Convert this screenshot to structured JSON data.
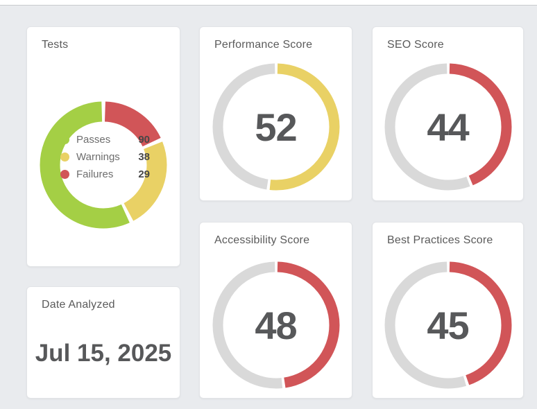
{
  "page": {
    "background_color": "#e9ebee",
    "topbar_color": "#ffffff"
  },
  "colors": {
    "green": "#a4cf45",
    "yellow": "#e9d165",
    "red": "#d15558",
    "track_gray": "#d9d9d9",
    "number_text": "#57585a",
    "title_text": "#5a5a5a"
  },
  "cards": {
    "tests": {
      "title": "Tests",
      "legend": [
        {
          "label": "Passes",
          "value": 90,
          "color": "#a4cf45"
        },
        {
          "label": "Warnings",
          "value": 38,
          "color": "#e9d165"
        },
        {
          "label": "Failures",
          "value": 29,
          "color": "#d15558"
        }
      ]
    },
    "scores": [
      {
        "title": "Performance Score",
        "value": 52,
        "max": 100,
        "color": "#e9d165"
      },
      {
        "title": "SEO Score",
        "value": 44,
        "max": 100,
        "color": "#d15558"
      },
      {
        "title": "Accessibility Score",
        "value": 48,
        "max": 100,
        "color": "#d15558"
      },
      {
        "title": "Best Practices Score",
        "value": 45,
        "max": 100,
        "color": "#d15558"
      }
    ],
    "date": {
      "title": "Date Analyzed",
      "value": "Jul 15, 2025"
    }
  },
  "chart_data": [
    {
      "type": "pie",
      "variant": "doughnut",
      "title": "Tests",
      "labels": [
        "Passes",
        "Warnings",
        "Failures"
      ],
      "values": [
        90,
        38,
        29
      ],
      "colors": [
        "#a4cf45",
        "#e9d165",
        "#d15558"
      ],
      "legend_position": "center",
      "clockwise_order_from_top": [
        "Failures",
        "Warnings",
        "Passes"
      ]
    },
    {
      "type": "pie",
      "variant": "gauge",
      "title": "Performance Score",
      "value": 52,
      "range": [
        0,
        100
      ],
      "color": "#e9d165",
      "track_color": "#d9d9d9"
    },
    {
      "type": "pie",
      "variant": "gauge",
      "title": "SEO Score",
      "value": 44,
      "range": [
        0,
        100
      ],
      "color": "#d15558",
      "track_color": "#d9d9d9"
    },
    {
      "type": "pie",
      "variant": "gauge",
      "title": "Accessibility Score",
      "value": 48,
      "range": [
        0,
        100
      ],
      "color": "#d15558",
      "track_color": "#d9d9d9"
    },
    {
      "type": "pie",
      "variant": "gauge",
      "title": "Best Practices Score",
      "value": 45,
      "range": [
        0,
        100
      ],
      "color": "#d15558",
      "track_color": "#d9d9d9"
    }
  ]
}
